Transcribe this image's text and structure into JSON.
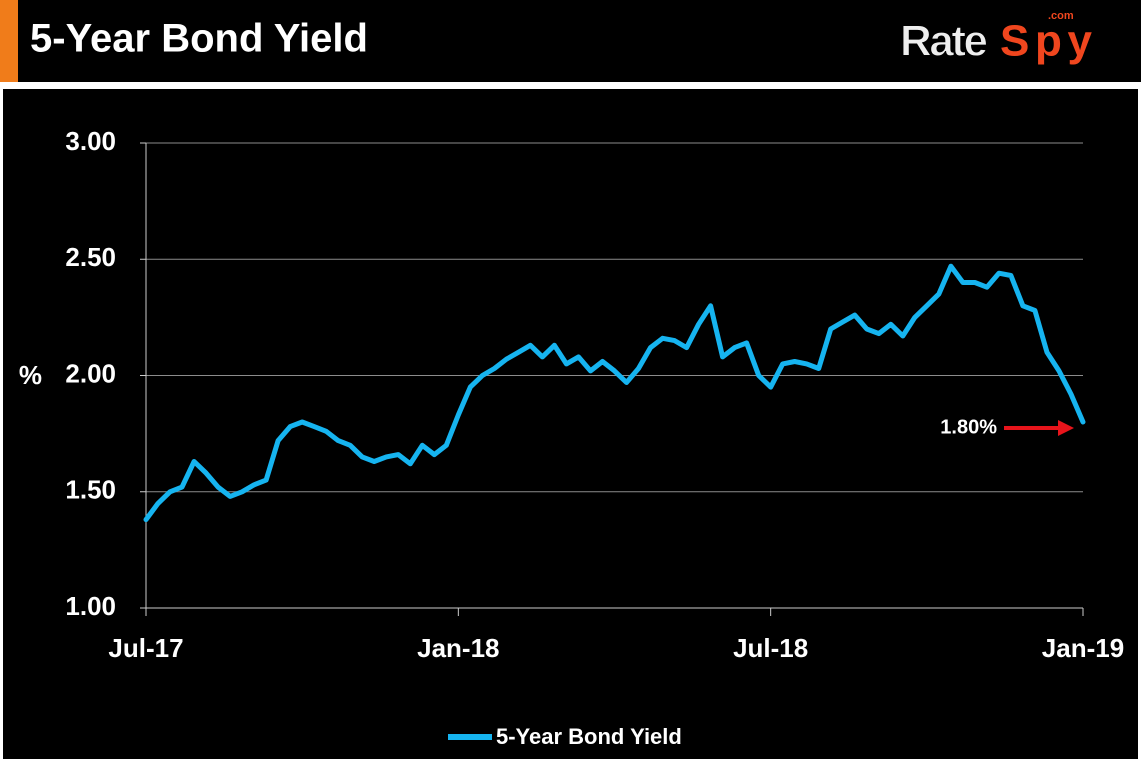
{
  "logo": {
    "part1": "Rate",
    "part2": "Spy",
    "domain": ".com"
  },
  "chart_data": {
    "type": "line",
    "title": "5-Year Bond Yield",
    "y_label": "%",
    "annotation": "1.80%",
    "categories": [
      "Jul-17",
      null,
      null,
      null,
      null,
      null,
      null,
      null,
      null,
      null,
      null,
      null,
      null,
      null,
      null,
      null,
      null,
      null,
      null,
      null,
      null,
      null,
      null,
      null,
      null,
      null,
      "Jan-18",
      null,
      null,
      null,
      null,
      null,
      null,
      null,
      null,
      null,
      null,
      null,
      null,
      null,
      null,
      null,
      null,
      null,
      null,
      null,
      null,
      null,
      null,
      null,
      null,
      null,
      "Jul-18",
      null,
      null,
      null,
      null,
      null,
      null,
      null,
      null,
      null,
      null,
      null,
      null,
      null,
      null,
      null,
      null,
      null,
      null,
      null,
      null,
      null,
      null,
      null,
      null,
      null,
      "Jan-19"
    ],
    "series": [
      {
        "name": "5-Year Bond Yield",
        "color": "#16b4f0",
        "values": [
          1.38,
          1.45,
          1.5,
          1.52,
          1.63,
          1.58,
          1.52,
          1.48,
          1.5,
          1.53,
          1.55,
          1.72,
          1.78,
          1.8,
          1.78,
          1.76,
          1.72,
          1.7,
          1.65,
          1.63,
          1.65,
          1.66,
          1.62,
          1.7,
          1.66,
          1.7,
          1.83,
          1.95,
          2.0,
          2.03,
          2.07,
          2.1,
          2.13,
          2.08,
          2.13,
          2.05,
          2.08,
          2.02,
          2.06,
          2.02,
          1.97,
          2.03,
          2.12,
          2.16,
          2.15,
          2.12,
          2.22,
          2.3,
          2.08,
          2.12,
          2.14,
          2.0,
          1.95,
          2.05,
          2.06,
          2.05,
          2.03,
          2.2,
          2.23,
          2.26,
          2.2,
          2.18,
          2.22,
          2.17,
          2.25,
          2.3,
          2.35,
          2.47,
          2.4,
          2.4,
          2.38,
          2.44,
          2.43,
          2.3,
          2.28,
          2.1,
          2.02,
          1.92,
          1.8
        ]
      }
    ],
    "ylim": [
      1,
      3
    ],
    "yticks": [
      {
        "value": 1,
        "label": "1.00"
      },
      {
        "value": 1.5,
        "label": "1.50"
      },
      {
        "value": 2,
        "label": "2.00"
      },
      {
        "value": 2.5,
        "label": "2.50"
      },
      {
        "value": 3,
        "label": "3.00"
      }
    ],
    "grid": true
  }
}
